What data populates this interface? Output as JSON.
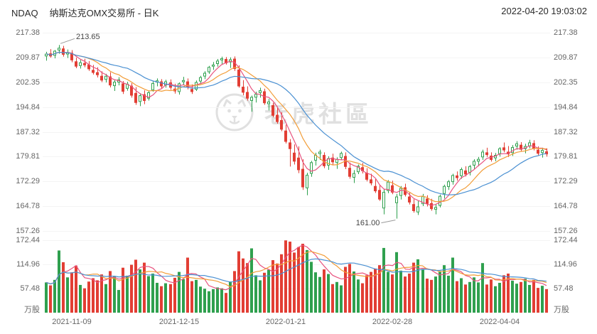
{
  "header": {
    "symbol": "NDAQ",
    "name_period": "纳斯达克OMX交易所 - 日K",
    "timestamp": "2022-04-20 19:03:02"
  },
  "watermark": {
    "text": "老虎社區"
  },
  "colors": {
    "up": "#2fa04e",
    "down": "#e23e34",
    "ma5": "#e8537f",
    "ma10": "#f29d38",
    "ma20": "#4a90d2",
    "axis_text": "#666666",
    "annotation_line": "#999999",
    "watermark": "#e0e0e0"
  },
  "chart_data": {
    "type": "candlestick",
    "title": "NDAQ 纳斯达克OMX交易所 - 日K",
    "legend_position": "none",
    "grid": false,
    "y_axis": {
      "max": 217.38,
      "min": 157.26,
      "tick_labels": [
        "217.38",
        "209.87",
        "202.35",
        "194.84",
        "187.32",
        "179.81",
        "172.29",
        "164.78",
        "157.26"
      ],
      "tick_values": [
        217.38,
        209.87,
        202.35,
        194.84,
        187.32,
        179.81,
        172.29,
        164.78,
        157.26
      ]
    },
    "volume_axis": {
      "max": 172.44,
      "tick_labels": [
        "172.44",
        "114.96",
        "57.48"
      ],
      "tick_values": [
        172.44,
        114.96,
        57.48
      ],
      "unit": "万股"
    },
    "x_ticks": [
      "2021-11-09",
      "2021-12-15",
      "2022-01-21",
      "2022-02-28",
      "2022-04-04"
    ],
    "annotations": {
      "high": "213.65",
      "low": "161.00"
    },
    "moving_averages": {
      "price": [
        5,
        10,
        20
      ],
      "volume": [
        5,
        10,
        20
      ]
    },
    "candles": [
      {
        "d": "2021-11-01",
        "o": 210.2,
        "h": 211.6,
        "l": 208.9,
        "c": 211.0,
        "v": 72
      },
      {
        "d": "2021-11-02",
        "o": 211.1,
        "h": 212.4,
        "l": 209.8,
        "c": 210.2,
        "v": 65
      },
      {
        "d": "2021-11-03",
        "o": 210.4,
        "h": 212.1,
        "l": 209.6,
        "c": 211.9,
        "v": 78
      },
      {
        "d": "2021-11-04",
        "o": 212.0,
        "h": 213.65,
        "l": 211.0,
        "c": 212.8,
        "v": 148
      },
      {
        "d": "2021-11-05",
        "o": 212.6,
        "h": 213.4,
        "l": 210.1,
        "c": 210.7,
        "v": 120
      },
      {
        "d": "2021-11-08",
        "o": 210.8,
        "h": 212.3,
        "l": 209.7,
        "c": 211.5,
        "v": 84
      },
      {
        "d": "2021-11-09",
        "o": 211.3,
        "h": 212.1,
        "l": 208.4,
        "c": 209.0,
        "v": 96
      },
      {
        "d": "2021-11-10",
        "o": 208.7,
        "h": 209.8,
        "l": 206.6,
        "c": 207.1,
        "v": 112
      },
      {
        "d": "2021-11-11",
        "o": 207.3,
        "h": 209.1,
        "l": 206.5,
        "c": 208.4,
        "v": 66
      },
      {
        "d": "2021-11-12",
        "o": 208.2,
        "h": 209.5,
        "l": 206.9,
        "c": 207.5,
        "v": 58
      },
      {
        "d": "2021-11-15",
        "o": 207.7,
        "h": 208.8,
        "l": 205.8,
        "c": 206.3,
        "v": 74
      },
      {
        "d": "2021-11-16",
        "o": 206.1,
        "h": 207.6,
        "l": 204.7,
        "c": 205.2,
        "v": 82
      },
      {
        "d": "2021-11-17",
        "o": 205.4,
        "h": 206.9,
        "l": 203.8,
        "c": 204.5,
        "v": 77
      },
      {
        "d": "2021-11-18",
        "o": 204.3,
        "h": 205.7,
        "l": 202.4,
        "c": 202.9,
        "v": 91
      },
      {
        "d": "2021-11-19",
        "o": 203.1,
        "h": 204.9,
        "l": 202.3,
        "c": 204.3,
        "v": 68
      },
      {
        "d": "2021-11-22",
        "o": 204.1,
        "h": 205.4,
        "l": 200.8,
        "c": 201.4,
        "v": 99
      },
      {
        "d": "2021-11-23",
        "o": 201.2,
        "h": 203.1,
        "l": 199.7,
        "c": 202.5,
        "v": 86
      },
      {
        "d": "2021-11-24",
        "o": 202.3,
        "h": 203.9,
        "l": 201.4,
        "c": 203.2,
        "v": 54
      },
      {
        "d": "2021-11-26",
        "o": 202.0,
        "h": 202.7,
        "l": 198.8,
        "c": 199.5,
        "v": 107
      },
      {
        "d": "2021-11-29",
        "o": 200.4,
        "h": 202.5,
        "l": 199.8,
        "c": 201.9,
        "v": 88
      },
      {
        "d": "2021-11-30",
        "o": 201.3,
        "h": 202.1,
        "l": 197.7,
        "c": 198.3,
        "v": 114
      },
      {
        "d": "2021-12-01",
        "o": 199.1,
        "h": 200.9,
        "l": 195.5,
        "c": 196.1,
        "v": 126
      },
      {
        "d": "2021-12-02",
        "o": 196.4,
        "h": 199.0,
        "l": 195.1,
        "c": 198.4,
        "v": 103
      },
      {
        "d": "2021-12-03",
        "o": 198.7,
        "h": 199.9,
        "l": 195.7,
        "c": 196.7,
        "v": 119
      },
      {
        "d": "2021-12-06",
        "o": 197.4,
        "h": 199.7,
        "l": 196.8,
        "c": 199.3,
        "v": 87
      },
      {
        "d": "2021-12-07",
        "o": 199.9,
        "h": 202.6,
        "l": 199.5,
        "c": 202.1,
        "v": 93
      },
      {
        "d": "2021-12-08",
        "o": 202.3,
        "h": 203.5,
        "l": 201.1,
        "c": 202.9,
        "v": 71
      },
      {
        "d": "2021-12-09",
        "o": 202.6,
        "h": 203.3,
        "l": 200.5,
        "c": 201.1,
        "v": 63
      },
      {
        "d": "2021-12-10",
        "o": 201.4,
        "h": 203.1,
        "l": 200.7,
        "c": 202.6,
        "v": 70
      },
      {
        "d": "2021-12-13",
        "o": 202.3,
        "h": 203.2,
        "l": 200.1,
        "c": 200.7,
        "v": 68
      },
      {
        "d": "2021-12-14",
        "o": 200.4,
        "h": 201.9,
        "l": 198.9,
        "c": 199.6,
        "v": 83
      },
      {
        "d": "2021-12-15",
        "o": 199.4,
        "h": 202.3,
        "l": 198.6,
        "c": 202.0,
        "v": 97
      },
      {
        "d": "2021-12-16",
        "o": 202.4,
        "h": 204.0,
        "l": 201.6,
        "c": 203.0,
        "v": 80
      },
      {
        "d": "2021-12-17",
        "o": 202.6,
        "h": 203.5,
        "l": 200.2,
        "c": 200.9,
        "v": 131
      },
      {
        "d": "2021-12-20",
        "o": 200.3,
        "h": 201.7,
        "l": 198.8,
        "c": 199.4,
        "v": 75
      },
      {
        "d": "2021-12-21",
        "o": 200.1,
        "h": 202.9,
        "l": 199.7,
        "c": 202.4,
        "v": 78
      },
      {
        "d": "2021-12-22",
        "o": 202.6,
        "h": 204.3,
        "l": 201.8,
        "c": 203.9,
        "v": 62
      },
      {
        "d": "2021-12-23",
        "o": 204.1,
        "h": 205.7,
        "l": 203.3,
        "c": 205.2,
        "v": 57
      },
      {
        "d": "2021-12-27",
        "o": 205.4,
        "h": 207.3,
        "l": 204.9,
        "c": 207.0,
        "v": 51
      },
      {
        "d": "2021-12-28",
        "o": 207.1,
        "h": 208.5,
        "l": 206.1,
        "c": 207.7,
        "v": 56
      },
      {
        "d": "2021-12-29",
        "o": 207.9,
        "h": 209.4,
        "l": 207.1,
        "c": 208.9,
        "v": 60
      },
      {
        "d": "2021-12-30",
        "o": 209.0,
        "h": 210.1,
        "l": 207.8,
        "c": 209.6,
        "v": 58
      },
      {
        "d": "2021-12-31",
        "o": 209.4,
        "h": 210.0,
        "l": 207.7,
        "c": 208.1,
        "v": 47
      },
      {
        "d": "2022-01-03",
        "o": 208.4,
        "h": 209.9,
        "l": 206.7,
        "c": 209.3,
        "v": 74
      },
      {
        "d": "2022-01-04",
        "o": 209.5,
        "h": 210.2,
        "l": 205.8,
        "c": 206.4,
        "v": 99
      },
      {
        "d": "2022-01-05",
        "o": 206.2,
        "h": 207.5,
        "l": 200.7,
        "c": 201.1,
        "v": 146
      },
      {
        "d": "2022-01-06",
        "o": 201.0,
        "h": 203.0,
        "l": 198.4,
        "c": 199.2,
        "v": 129
      },
      {
        "d": "2022-01-07",
        "o": 199.4,
        "h": 201.1,
        "l": 196.8,
        "c": 197.4,
        "v": 118
      },
      {
        "d": "2022-01-10",
        "o": 196.7,
        "h": 198.3,
        "l": 193.4,
        "c": 197.9,
        "v": 153
      },
      {
        "d": "2022-01-11",
        "o": 197.7,
        "h": 199.5,
        "l": 196.2,
        "c": 198.8,
        "v": 89
      },
      {
        "d": "2022-01-12",
        "o": 199.1,
        "h": 200.7,
        "l": 197.7,
        "c": 199.9,
        "v": 77
      },
      {
        "d": "2022-01-13",
        "o": 199.6,
        "h": 200.4,
        "l": 195.5,
        "c": 196.0,
        "v": 95
      },
      {
        "d": "2022-01-14",
        "o": 195.7,
        "h": 197.3,
        "l": 193.8,
        "c": 196.5,
        "v": 102
      },
      {
        "d": "2022-01-18",
        "o": 195.4,
        "h": 196.1,
        "l": 191.7,
        "c": 192.2,
        "v": 125
      },
      {
        "d": "2022-01-19",
        "o": 192.5,
        "h": 194.6,
        "l": 189.8,
        "c": 190.3,
        "v": 117
      },
      {
        "d": "2022-01-20",
        "o": 190.9,
        "h": 193.3,
        "l": 187.5,
        "c": 188.0,
        "v": 139
      },
      {
        "d": "2022-01-21",
        "o": 187.7,
        "h": 189.5,
        "l": 183.8,
        "c": 184.3,
        "v": 172
      },
      {
        "d": "2022-01-24",
        "o": 184.1,
        "h": 185.1,
        "l": 176.8,
        "c": 182.1,
        "v": 169
      },
      {
        "d": "2022-01-25",
        "o": 181.0,
        "h": 183.5,
        "l": 177.4,
        "c": 178.3,
        "v": 143
      },
      {
        "d": "2022-01-26",
        "o": 179.5,
        "h": 182.9,
        "l": 174.8,
        "c": 175.7,
        "v": 156
      },
      {
        "d": "2022-01-27",
        "o": 176.1,
        "h": 179.0,
        "l": 169.7,
        "c": 170.5,
        "v": 164
      },
      {
        "d": "2022-01-28",
        "o": 170.2,
        "h": 174.9,
        "l": 168.1,
        "c": 174.3,
        "v": 149
      },
      {
        "d": "2022-01-31",
        "o": 174.6,
        "h": 178.5,
        "l": 173.7,
        "c": 178.1,
        "v": 121
      },
      {
        "d": "2022-02-01",
        "o": 178.6,
        "h": 181.0,
        "l": 177.1,
        "c": 180.3,
        "v": 96
      },
      {
        "d": "2022-02-02",
        "o": 180.6,
        "h": 181.9,
        "l": 178.8,
        "c": 181.3,
        "v": 85
      },
      {
        "d": "2022-02-03",
        "o": 180.3,
        "h": 181.1,
        "l": 176.3,
        "c": 176.9,
        "v": 103
      },
      {
        "d": "2022-02-04",
        "o": 177.1,
        "h": 179.9,
        "l": 175.8,
        "c": 179.3,
        "v": 92
      },
      {
        "d": "2022-02-07",
        "o": 179.5,
        "h": 180.7,
        "l": 177.4,
        "c": 178.1,
        "v": 68
      },
      {
        "d": "2022-02-08",
        "o": 177.9,
        "h": 179.6,
        "l": 176.1,
        "c": 179.1,
        "v": 73
      },
      {
        "d": "2022-02-09",
        "o": 179.4,
        "h": 181.3,
        "l": 178.7,
        "c": 180.9,
        "v": 65
      },
      {
        "d": "2022-02-10",
        "o": 180.0,
        "h": 181.1,
        "l": 176.0,
        "c": 176.7,
        "v": 109
      },
      {
        "d": "2022-02-11",
        "o": 176.4,
        "h": 178.0,
        "l": 173.1,
        "c": 173.7,
        "v": 116
      },
      {
        "d": "2022-02-14",
        "o": 173.4,
        "h": 175.7,
        "l": 171.8,
        "c": 174.8,
        "v": 98
      },
      {
        "d": "2022-02-15",
        "o": 175.1,
        "h": 177.4,
        "l": 174.5,
        "c": 177.0,
        "v": 79
      },
      {
        "d": "2022-02-16",
        "o": 176.6,
        "h": 177.9,
        "l": 174.7,
        "c": 175.4,
        "v": 70
      },
      {
        "d": "2022-02-17",
        "o": 174.9,
        "h": 176.3,
        "l": 172.3,
        "c": 172.8,
        "v": 89
      },
      {
        "d": "2022-02-18",
        "o": 172.9,
        "h": 174.6,
        "l": 171.1,
        "c": 171.7,
        "v": 97
      },
      {
        "d": "2022-02-22",
        "o": 170.9,
        "h": 173.0,
        "l": 168.8,
        "c": 169.3,
        "v": 105
      },
      {
        "d": "2022-02-23",
        "o": 169.7,
        "h": 171.1,
        "l": 166.4,
        "c": 166.8,
        "v": 113
      },
      {
        "d": "2022-02-24",
        "o": 164.1,
        "h": 169.9,
        "l": 162.3,
        "c": 169.1,
        "v": 154
      },
      {
        "d": "2022-02-25",
        "o": 169.4,
        "h": 172.7,
        "l": 168.7,
        "c": 172.2,
        "v": 97
      },
      {
        "d": "2022-02-28",
        "o": 171.1,
        "h": 172.5,
        "l": 168.4,
        "c": 168.9,
        "v": 91
      },
      {
        "d": "2022-03-01",
        "o": 165.7,
        "h": 168.5,
        "l": 161.0,
        "c": 167.7,
        "v": 144
      },
      {
        "d": "2022-03-02",
        "o": 167.9,
        "h": 170.9,
        "l": 166.8,
        "c": 170.3,
        "v": 100
      },
      {
        "d": "2022-03-03",
        "o": 170.5,
        "h": 171.6,
        "l": 167.7,
        "c": 168.2,
        "v": 86
      },
      {
        "d": "2022-03-04",
        "o": 167.7,
        "h": 169.0,
        "l": 165.3,
        "c": 165.9,
        "v": 93
      },
      {
        "d": "2022-03-07",
        "o": 165.4,
        "h": 166.9,
        "l": 162.8,
        "c": 163.3,
        "v": 119
      },
      {
        "d": "2022-03-08",
        "o": 162.9,
        "h": 166.3,
        "l": 162.1,
        "c": 164.7,
        "v": 127
      },
      {
        "d": "2022-03-09",
        "o": 165.4,
        "h": 168.5,
        "l": 164.8,
        "c": 167.8,
        "v": 104
      },
      {
        "d": "2022-03-10",
        "o": 167.1,
        "h": 168.1,
        "l": 164.7,
        "c": 165.5,
        "v": 81
      },
      {
        "d": "2022-03-11",
        "o": 165.7,
        "h": 167.0,
        "l": 163.4,
        "c": 163.9,
        "v": 78
      },
      {
        "d": "2022-03-14",
        "o": 163.7,
        "h": 165.3,
        "l": 162.3,
        "c": 164.5,
        "v": 86
      },
      {
        "d": "2022-03-15",
        "o": 164.9,
        "h": 168.3,
        "l": 164.4,
        "c": 167.9,
        "v": 99
      },
      {
        "d": "2022-03-16",
        "o": 168.5,
        "h": 171.3,
        "l": 167.1,
        "c": 170.9,
        "v": 113
      },
      {
        "d": "2022-03-17",
        "o": 170.6,
        "h": 172.7,
        "l": 169.7,
        "c": 172.3,
        "v": 88
      },
      {
        "d": "2022-03-18",
        "o": 172.1,
        "h": 174.6,
        "l": 171.3,
        "c": 174.2,
        "v": 131
      },
      {
        "d": "2022-03-21",
        "o": 174.1,
        "h": 175.3,
        "l": 172.5,
        "c": 173.3,
        "v": 75
      },
      {
        "d": "2022-03-22",
        "o": 173.9,
        "h": 176.5,
        "l": 173.1,
        "c": 176.0,
        "v": 82
      },
      {
        "d": "2022-03-23",
        "o": 175.6,
        "h": 176.9,
        "l": 173.8,
        "c": 174.4,
        "v": 67
      },
      {
        "d": "2022-03-24",
        "o": 174.9,
        "h": 177.3,
        "l": 174.1,
        "c": 176.9,
        "v": 73
      },
      {
        "d": "2022-03-25",
        "o": 177.1,
        "h": 179.0,
        "l": 176.1,
        "c": 178.5,
        "v": 84
      },
      {
        "d": "2022-03-28",
        "o": 178.3,
        "h": 179.7,
        "l": 176.9,
        "c": 179.1,
        "v": 72
      },
      {
        "d": "2022-03-29",
        "o": 179.6,
        "h": 181.9,
        "l": 178.8,
        "c": 181.3,
        "v": 118
      },
      {
        "d": "2022-03-30",
        "o": 181.1,
        "h": 182.5,
        "l": 179.7,
        "c": 180.3,
        "v": 67
      },
      {
        "d": "2022-03-31",
        "o": 180.1,
        "h": 181.1,
        "l": 178.3,
        "c": 178.8,
        "v": 79
      },
      {
        "d": "2022-04-01",
        "o": 179.3,
        "h": 180.9,
        "l": 178.4,
        "c": 180.3,
        "v": 63
      },
      {
        "d": "2022-04-04",
        "o": 180.6,
        "h": 182.7,
        "l": 179.8,
        "c": 182.3,
        "v": 71
      },
      {
        "d": "2022-04-05",
        "o": 182.6,
        "h": 184.1,
        "l": 181.1,
        "c": 181.7,
        "v": 89
      },
      {
        "d": "2022-04-06",
        "o": 181.3,
        "h": 183.0,
        "l": 179.7,
        "c": 180.5,
        "v": 93
      },
      {
        "d": "2022-04-07",
        "o": 180.9,
        "h": 183.3,
        "l": 180.0,
        "c": 182.7,
        "v": 76
      },
      {
        "d": "2022-04-08",
        "o": 182.9,
        "h": 184.5,
        "l": 181.9,
        "c": 183.8,
        "v": 69
      },
      {
        "d": "2022-04-11",
        "o": 183.4,
        "h": 184.2,
        "l": 181.4,
        "c": 181.9,
        "v": 73
      },
      {
        "d": "2022-04-12",
        "o": 182.1,
        "h": 183.7,
        "l": 180.8,
        "c": 183.0,
        "v": 81
      },
      {
        "d": "2022-04-13",
        "o": 182.9,
        "h": 184.9,
        "l": 182.3,
        "c": 184.1,
        "v": 66
      },
      {
        "d": "2022-04-14",
        "o": 183.9,
        "h": 184.8,
        "l": 181.7,
        "c": 182.2,
        "v": 78
      },
      {
        "d": "2022-04-18",
        "o": 181.9,
        "h": 182.9,
        "l": 180.1,
        "c": 180.7,
        "v": 59
      },
      {
        "d": "2022-04-19",
        "o": 180.9,
        "h": 182.5,
        "l": 179.5,
        "c": 181.8,
        "v": 64
      },
      {
        "d": "2022-04-20",
        "o": 181.4,
        "h": 182.3,
        "l": 179.8,
        "c": 180.5,
        "v": 56
      }
    ]
  }
}
